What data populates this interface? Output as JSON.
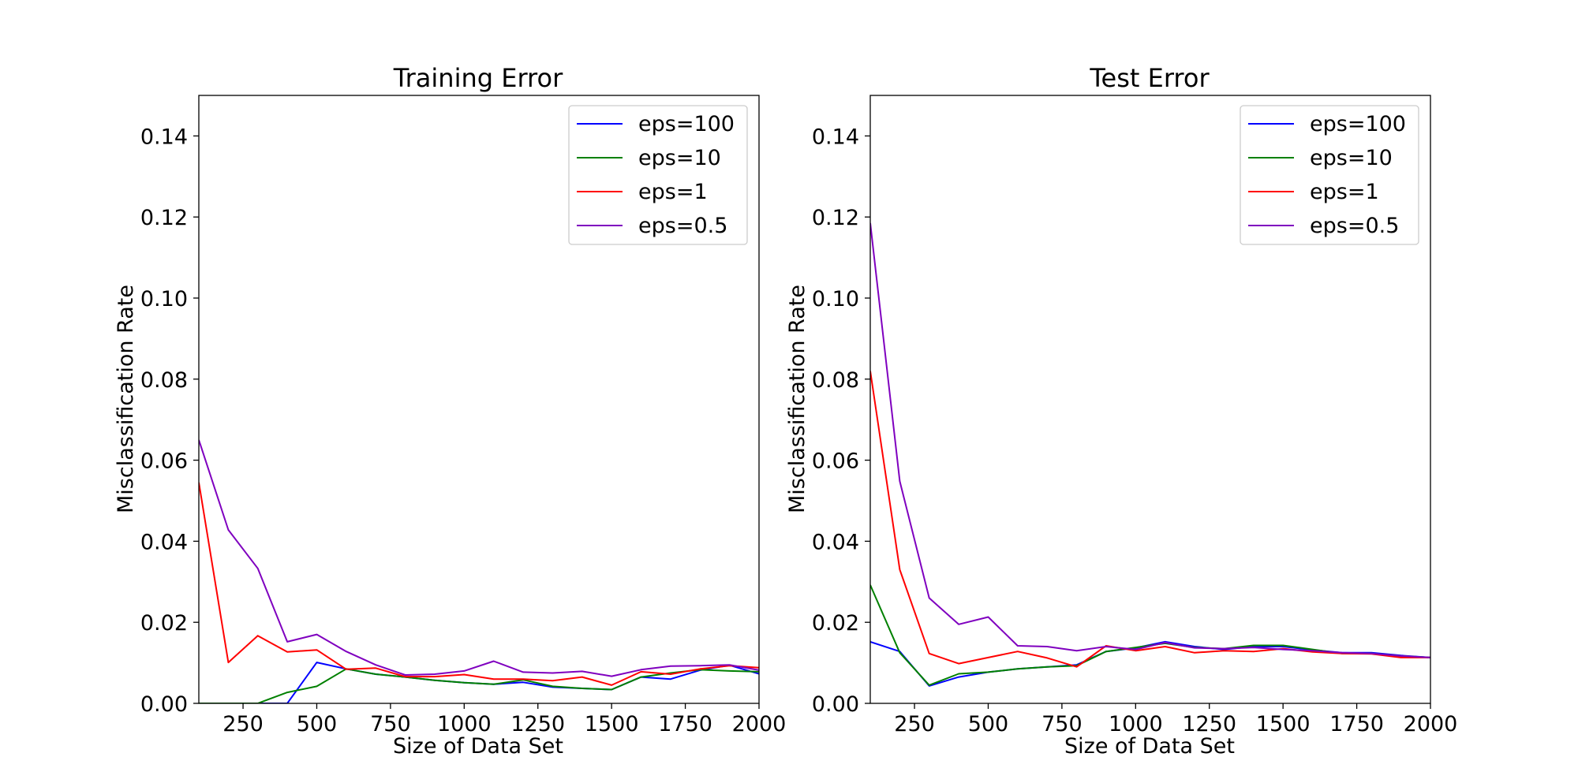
{
  "chart_data": [
    {
      "type": "line",
      "title": "Training Error",
      "xlabel": "Size of Data Set",
      "ylabel": "Misclassification Rate",
      "xlim": [
        100,
        2000
      ],
      "ylim": [
        0,
        0.15
      ],
      "xticks": [
        250,
        500,
        750,
        1000,
        1250,
        1500,
        1750,
        2000
      ],
      "xtick_labels": [
        "250",
        "500",
        "750",
        "1000",
        "1250",
        "1500",
        "1750",
        "2000"
      ],
      "yticks": [
        0.0,
        0.02,
        0.04,
        0.06,
        0.08,
        0.1,
        0.12,
        0.14
      ],
      "ytick_labels": [
        "0.00",
        "0.02",
        "0.04",
        "0.06",
        "0.08",
        "0.10",
        "0.12",
        "0.14"
      ],
      "grid": false,
      "legend_position": "top-right",
      "x": [
        100,
        200,
        300,
        400,
        500,
        600,
        700,
        800,
        900,
        1000,
        1100,
        1200,
        1300,
        1400,
        1500,
        1600,
        1700,
        1800,
        1900,
        2000
      ],
      "series": [
        {
          "name": "eps=100",
          "color": "#0000ff",
          "values": [
            0.0,
            0.0,
            0.0,
            0.0,
            0.0101,
            0.0085,
            0.0072,
            0.0065,
            0.0057,
            0.0051,
            0.0047,
            0.0052,
            0.004,
            0.0037,
            0.0034,
            0.0065,
            0.006,
            0.0082,
            0.0094,
            0.0073
          ]
        },
        {
          "name": "eps=10",
          "color": "#008000",
          "values": [
            0.0,
            0.0,
            0.0,
            0.0027,
            0.0042,
            0.0085,
            0.0072,
            0.0065,
            0.0057,
            0.0051,
            0.0047,
            0.0058,
            0.0042,
            0.0037,
            0.0034,
            0.0065,
            0.0075,
            0.0083,
            0.008,
            0.0078
          ]
        },
        {
          "name": "eps=1",
          "color": "#ff0000",
          "values": [
            0.0545,
            0.0101,
            0.0167,
            0.0127,
            0.0132,
            0.0084,
            0.0087,
            0.0066,
            0.0066,
            0.0071,
            0.006,
            0.006,
            0.0056,
            0.0065,
            0.0045,
            0.0078,
            0.0072,
            0.0085,
            0.0093,
            0.0088
          ]
        },
        {
          "name": "eps=0.5",
          "color": "#7f00bf",
          "values": [
            0.065,
            0.0428,
            0.0333,
            0.0152,
            0.017,
            0.0128,
            0.0095,
            0.007,
            0.0072,
            0.008,
            0.0104,
            0.0077,
            0.0075,
            0.0079,
            0.0067,
            0.0083,
            0.0092,
            0.0093,
            0.0095,
            0.0082
          ]
        }
      ]
    },
    {
      "type": "line",
      "title": "Test Error",
      "xlabel": "Size of Data Set",
      "ylabel": "Misclassification Rate",
      "xlim": [
        100,
        2000
      ],
      "ylim": [
        0,
        0.15
      ],
      "xticks": [
        250,
        500,
        750,
        1000,
        1250,
        1500,
        1750,
        2000
      ],
      "xtick_labels": [
        "250",
        "500",
        "750",
        "1000",
        "1250",
        "1500",
        "1750",
        "2000"
      ],
      "yticks": [
        0.0,
        0.02,
        0.04,
        0.06,
        0.08,
        0.1,
        0.12,
        0.14
      ],
      "ytick_labels": [
        "0.00",
        "0.02",
        "0.04",
        "0.06",
        "0.08",
        "0.10",
        "0.12",
        "0.14"
      ],
      "grid": false,
      "legend_position": "top-right",
      "x": [
        100,
        200,
        300,
        400,
        500,
        600,
        700,
        800,
        900,
        1000,
        1100,
        1200,
        1300,
        1400,
        1500,
        1600,
        1700,
        1800,
        1900,
        2000
      ],
      "series": [
        {
          "name": "eps=100",
          "color": "#0000ff",
          "values": [
            0.0152,
            0.0128,
            0.0043,
            0.0065,
            0.0077,
            0.0085,
            0.009,
            0.0095,
            0.0128,
            0.0137,
            0.0152,
            0.014,
            0.0133,
            0.014,
            0.014,
            0.0132,
            0.0125,
            0.0125,
            0.0118,
            0.0113
          ]
        },
        {
          "name": "eps=10",
          "color": "#008000",
          "values": [
            0.0292,
            0.0125,
            0.0045,
            0.0073,
            0.0077,
            0.0085,
            0.009,
            0.0093,
            0.0128,
            0.0138,
            0.0148,
            0.0138,
            0.0135,
            0.0143,
            0.0143,
            0.0133,
            0.0123,
            0.0123,
            0.0117,
            0.0113
          ]
        },
        {
          "name": "eps=1",
          "color": "#ff0000",
          "values": [
            0.082,
            0.033,
            0.0123,
            0.0098,
            0.0113,
            0.0128,
            0.0112,
            0.009,
            0.0142,
            0.013,
            0.014,
            0.0125,
            0.013,
            0.0128,
            0.0135,
            0.0127,
            0.0123,
            0.0122,
            0.0113,
            0.0113
          ]
        },
        {
          "name": "eps=0.5",
          "color": "#7f00bf",
          "values": [
            0.1185,
            0.0548,
            0.026,
            0.0195,
            0.0213,
            0.0142,
            0.014,
            0.013,
            0.014,
            0.0133,
            0.015,
            0.0137,
            0.0135,
            0.0138,
            0.0133,
            0.013,
            0.0125,
            0.0123,
            0.0117,
            0.0113
          ]
        }
      ]
    }
  ]
}
